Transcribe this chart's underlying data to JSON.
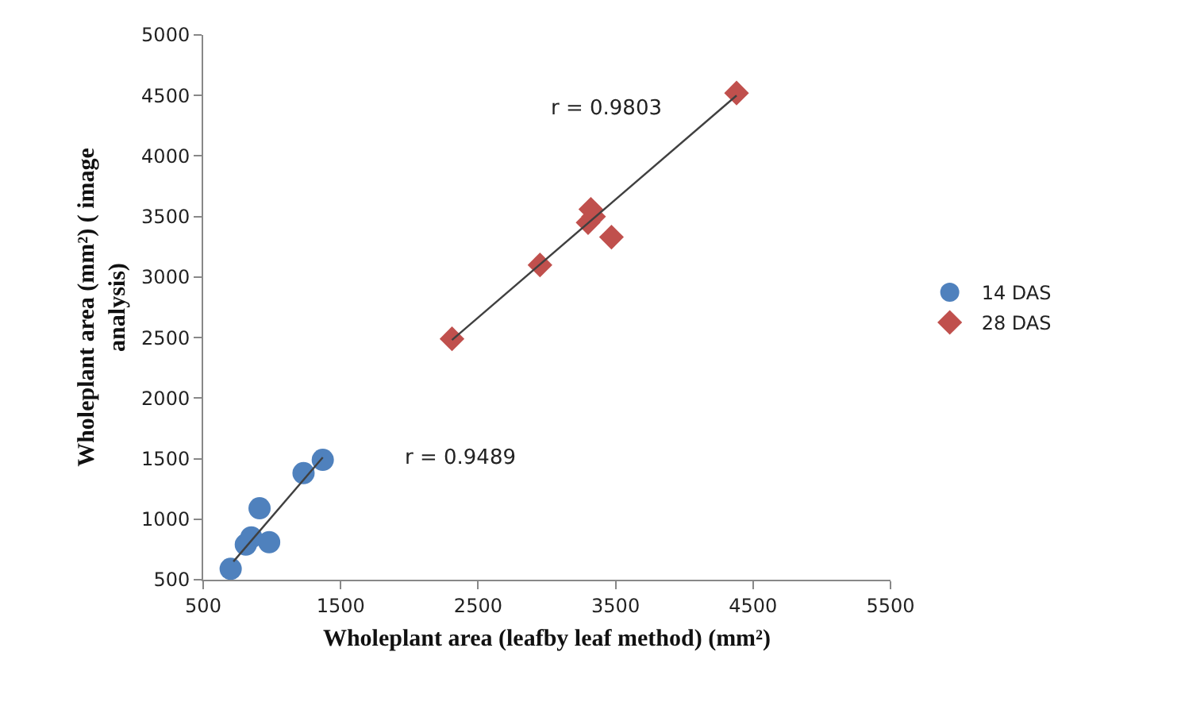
{
  "chart_data": {
    "type": "scatter",
    "xlabel": "Wholeplant area (leafby leaf method) (mm²)",
    "ylabel": "Wholeplant area (mm²) ( image analysis)",
    "xlim": [
      500,
      5500
    ],
    "xticks": [
      500,
      1500,
      2500,
      3500,
      4500,
      5500
    ],
    "ylim": [
      500,
      5000
    ],
    "yticks": [
      500,
      1000,
      1500,
      2000,
      2500,
      3000,
      3500,
      4000,
      4500,
      5000
    ],
    "grid": false,
    "legend": "right",
    "series": [
      {
        "name": "14 DAS",
        "color": "#4f81bd",
        "marker": "circle",
        "x": [
          700,
          810,
          850,
          910,
          980,
          1230,
          1370
        ],
        "values": [
          590,
          790,
          850,
          1090,
          810,
          1380,
          1490
        ]
      },
      {
        "name": "28 DAS",
        "color": "#c0504d",
        "marker": "diamond",
        "x": [
          2310,
          2950,
          3300,
          3320,
          3340,
          3470,
          4380
        ],
        "values": [
          2490,
          3100,
          3450,
          3560,
          3500,
          3330,
          4520
        ]
      },
      {
        "type": "line",
        "color": "#404040",
        "marker": "none",
        "x": [
          720,
          1370
        ],
        "values": [
          650,
          1510
        ]
      },
      {
        "type": "line",
        "color": "#404040",
        "marker": "none",
        "x": [
          2310,
          4380
        ],
        "values": [
          2480,
          4500
        ]
      }
    ],
    "annotations": [
      "r = 0.9489",
      "r = 0.9803"
    ]
  }
}
